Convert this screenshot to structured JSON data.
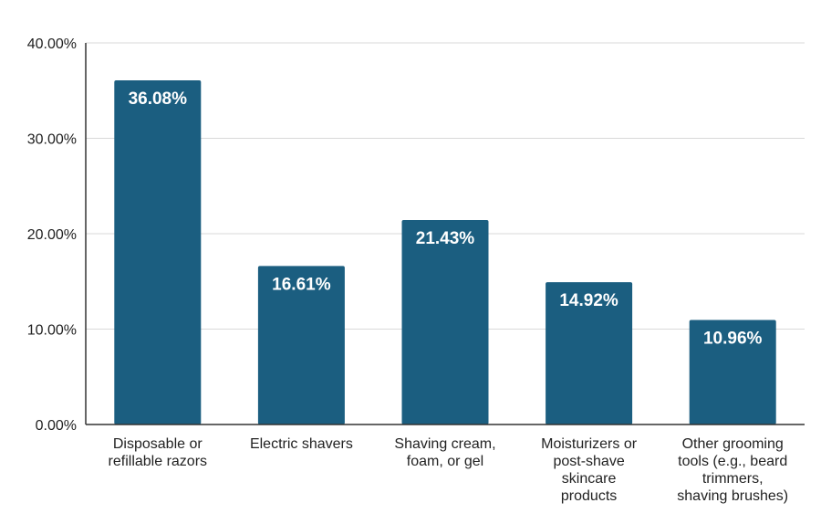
{
  "chart_data": {
    "type": "bar",
    "categories": [
      [
        "Disposable or",
        "refillable razors"
      ],
      [
        "Electric shavers"
      ],
      [
        "Shaving cream,",
        "foam, or gel"
      ],
      [
        "Moisturizers or",
        "post-shave",
        "skincare",
        "products"
      ],
      [
        "Other grooming",
        "tools (e.g., beard",
        "trimmers,",
        "shaving brushes)"
      ]
    ],
    "values": [
      36.08,
      16.61,
      21.43,
      14.92,
      10.96
    ],
    "data_labels": [
      "36.08%",
      "16.61%",
      "21.43%",
      "14.92%",
      "10.96%"
    ],
    "ylim": [
      0,
      40
    ],
    "yticks": [
      0,
      10,
      20,
      30,
      40
    ],
    "ytick_labels": [
      "0.00%",
      "10.00%",
      "20.00%",
      "30.00%",
      "40.00%"
    ],
    "title": "",
    "xlabel": "",
    "ylabel": "",
    "grid": true,
    "colors": {
      "bar": "#1b5e80",
      "label": "#ffffff",
      "grid": "#d9d9d9"
    }
  }
}
